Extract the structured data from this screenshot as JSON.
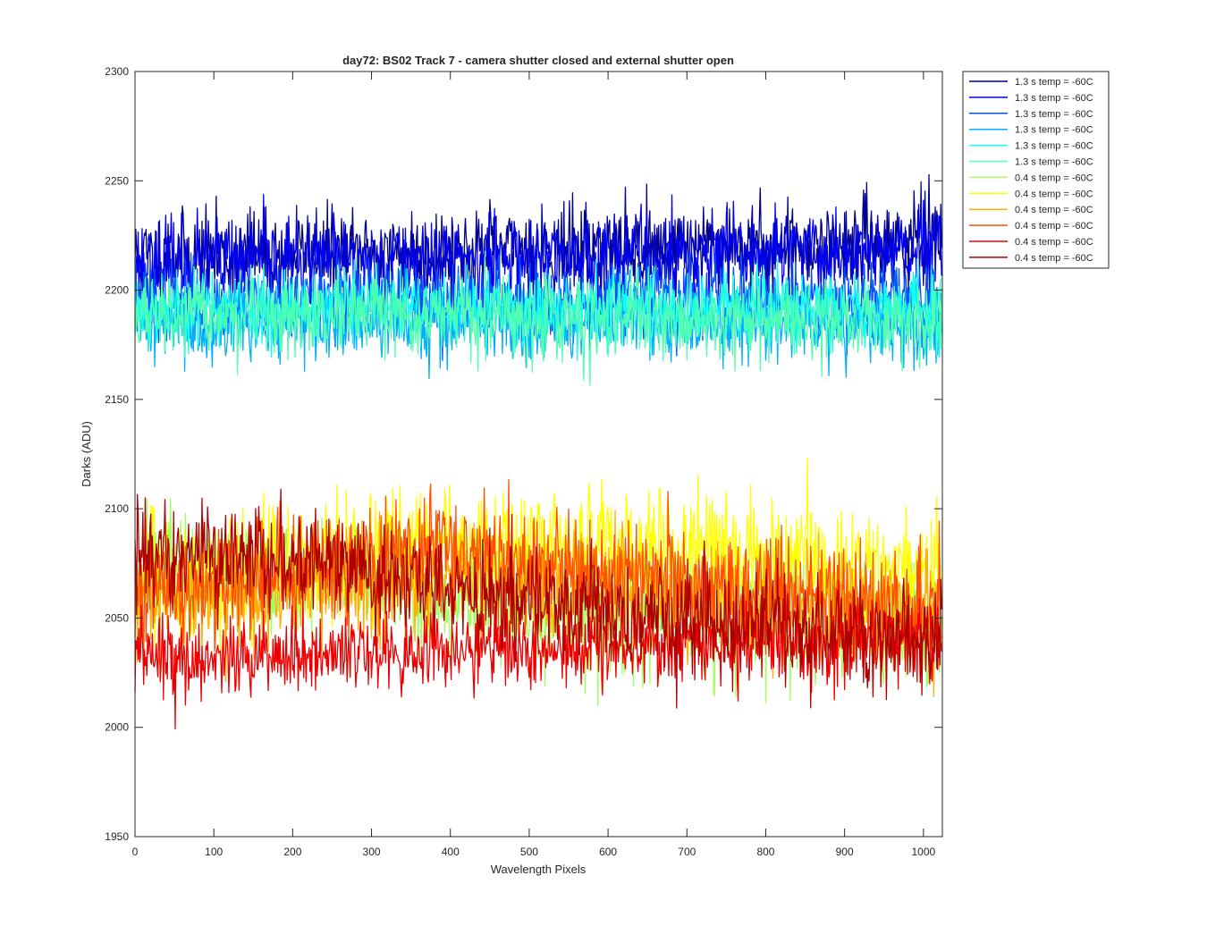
{
  "chart_data": {
    "type": "line",
    "title": "day72: BS02  Track 7 - camera shutter closed and external shutter open",
    "xlabel": "Wavelength Pixels",
    "ylabel": "Darks (ADU)",
    "xlim": [
      0,
      1024
    ],
    "ylim": [
      1950,
      2300
    ],
    "xticks": [
      0,
      100,
      200,
      300,
      400,
      500,
      600,
      700,
      800,
      900,
      1000
    ],
    "yticks": [
      1950,
      2000,
      2050,
      2100,
      2150,
      2200,
      2250,
      2300
    ],
    "grid": false,
    "legend_position": "outside-top-right",
    "series_length": 1024,
    "series": [
      {
        "name": "1.3 s temp = -60C",
        "color": "#00008f",
        "anchors": [
          [
            0,
            2215
          ],
          [
            1023,
            2222
          ]
        ],
        "noise": 10,
        "seed": 11
      },
      {
        "name": "1.3 s temp = -60C",
        "color": "#0000ef",
        "anchors": [
          [
            0,
            2212
          ],
          [
            1023,
            2218
          ]
        ],
        "noise": 10,
        "seed": 23
      },
      {
        "name": "1.3 s temp = -60C",
        "color": "#0050ff",
        "anchors": [
          [
            0,
            2195
          ],
          [
            1023,
            2197
          ]
        ],
        "noise": 9,
        "seed": 37
      },
      {
        "name": "1.3 s temp = -60C",
        "color": "#00afff",
        "anchors": [
          [
            0,
            2186
          ],
          [
            1023,
            2184
          ]
        ],
        "noise": 9,
        "seed": 41
      },
      {
        "name": "1.3 s temp = -60C",
        "color": "#10ffef",
        "anchors": [
          [
            0,
            2192
          ],
          [
            1023,
            2192
          ]
        ],
        "noise": 8,
        "seed": 53
      },
      {
        "name": "1.3 s temp = -60C",
        "color": "#50ffaf",
        "anchors": [
          [
            0,
            2188
          ],
          [
            1023,
            2186
          ]
        ],
        "noise": 9,
        "seed": 67
      },
      {
        "name": "0.4 s temp = -60C",
        "color": "#9fff60",
        "anchors": [
          [
            0,
            2075
          ],
          [
            300,
            2068
          ],
          [
            500,
            2052
          ],
          [
            1023,
            2045
          ]
        ],
        "noise": 13,
        "seed": 71
      },
      {
        "name": "0.4 s temp = -60C",
        "color": "#ffff00",
        "anchors": [
          [
            0,
            2065
          ],
          [
            320,
            2082
          ],
          [
            600,
            2084
          ],
          [
            1023,
            2070
          ]
        ],
        "noise": 14,
        "seed": 83
      },
      {
        "name": "0.4 s temp = -60C",
        "color": "#ffaf00",
        "anchors": [
          [
            0,
            2055
          ],
          [
            400,
            2070
          ],
          [
            700,
            2060
          ],
          [
            1023,
            2050
          ]
        ],
        "noise": 13,
        "seed": 97
      },
      {
        "name": "0.4 s temp = -60C",
        "color": "#ff5000",
        "anchors": [
          [
            0,
            2060
          ],
          [
            400,
            2083
          ],
          [
            560,
            2070
          ],
          [
            1023,
            2055
          ]
        ],
        "noise": 13,
        "seed": 101
      },
      {
        "name": "0.4 s temp = -60C",
        "color": "#ef0000",
        "anchors": [
          [
            0,
            2030
          ],
          [
            300,
            2035
          ],
          [
            1023,
            2040
          ]
        ],
        "noise": 9,
        "seed": 113
      },
      {
        "name": "0.4 s temp = -60C",
        "color": "#af0000",
        "anchors": [
          [
            0,
            2080
          ],
          [
            250,
            2073
          ],
          [
            450,
            2062
          ],
          [
            700,
            2050
          ],
          [
            1023,
            2040
          ]
        ],
        "noise": 12,
        "seed": 127
      }
    ]
  }
}
